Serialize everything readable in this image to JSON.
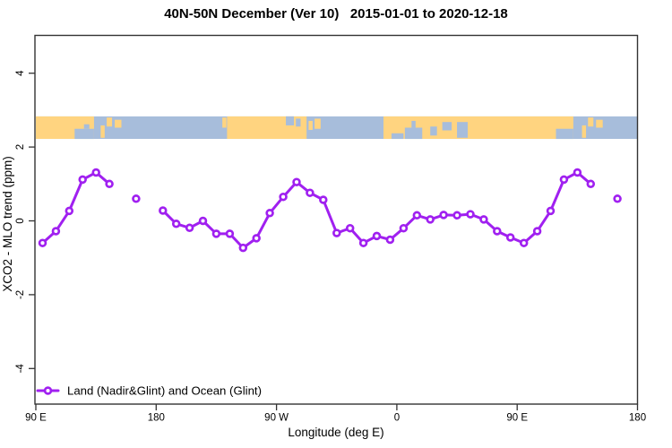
{
  "title": "40N-50N December (Ver 10)   2015-01-01 to 2020-12-18",
  "chart_data": {
    "type": "line",
    "xlabel": "Longitude (deg E)",
    "ylabel": "XCO2 - MLO trend (ppm)",
    "xlim": [
      90,
      540
    ],
    "ylim": [
      -5,
      5
    ],
    "grid": false,
    "x_ticks": [
      {
        "deg": 90,
        "label": "90 E"
      },
      {
        "deg": 180,
        "label": "180"
      },
      {
        "deg": 270,
        "label": "90 W"
      },
      {
        "deg": 360,
        "label": "0"
      },
      {
        "deg": 450,
        "label": "90 E"
      },
      {
        "deg": 540,
        "label": "180"
      }
    ],
    "y_ticks": [
      {
        "value": -4,
        "label": "-4"
      },
      {
        "value": -2,
        "label": "-2"
      },
      {
        "value": 0,
        "label": "0"
      },
      {
        "value": 2,
        "label": "2"
      },
      {
        "value": 4,
        "label": "4"
      }
    ],
    "legend": {
      "position": "bottom-left"
    },
    "gap_threshold_deg": 12,
    "series": [
      {
        "name": "Land (Nadir&Glint) and Ocean (Glint)",
        "color": "#A020F0",
        "marker": "open-circle",
        "points": [
          [
            95,
            -0.6
          ],
          [
            105,
            -0.28
          ],
          [
            115,
            0.27
          ],
          [
            125,
            1.12
          ],
          [
            135,
            1.31
          ],
          [
            145,
            1.0
          ],
          [
            165,
            0.6
          ],
          [
            185,
            0.28
          ],
          [
            195,
            -0.08
          ],
          [
            205,
            -0.19
          ],
          [
            215,
            0.0
          ],
          [
            225,
            -0.35
          ],
          [
            235,
            -0.35
          ],
          [
            245,
            -0.73
          ],
          [
            255,
            -0.47
          ],
          [
            265,
            0.21
          ],
          [
            275,
            0.65
          ],
          [
            285,
            1.05
          ],
          [
            295,
            0.76
          ],
          [
            305,
            0.57
          ],
          [
            315,
            -0.33
          ],
          [
            325,
            -0.2
          ],
          [
            335,
            -0.6
          ],
          [
            345,
            -0.41
          ],
          [
            355,
            -0.51
          ],
          [
            365,
            -0.2
          ],
          [
            375,
            0.15
          ],
          [
            385,
            0.04
          ],
          [
            395,
            0.16
          ],
          [
            405,
            0.15
          ],
          [
            415,
            0.18
          ],
          [
            425,
            0.04
          ],
          [
            435,
            -0.28
          ],
          [
            445,
            -0.45
          ],
          [
            455,
            -0.6
          ],
          [
            465,
            -0.28
          ],
          [
            475,
            0.27
          ],
          [
            485,
            1.12
          ],
          [
            495,
            1.31
          ],
          [
            505,
            1.0
          ],
          [
            525,
            0.6
          ]
        ]
      }
    ],
    "map_strip": {
      "description": "40N-50N latitude band world map strip (land/ocean)",
      "value_top": 2.83,
      "value_bottom": 2.22,
      "ocean_color": "#A7BDDB",
      "land_color": "#FFD480",
      "land_segments": [
        {
          "from": 90,
          "to": 133.5
        },
        {
          "from": 233,
          "to": 292.5
        },
        {
          "from": 350,
          "to": 492
        }
      ],
      "lakes": [
        {
          "from": 119,
          "to": 133.5,
          "top": 0.55,
          "bottom": 1.0
        },
        {
          "from": 126,
          "to": 130,
          "top": 0.35,
          "bottom": 0.55
        },
        {
          "from": 277,
          "to": 283,
          "top": 0.0,
          "bottom": 0.4
        },
        {
          "from": 284.5,
          "to": 288,
          "top": 0.1,
          "bottom": 0.45
        },
        {
          "from": 356,
          "to": 365,
          "top": 0.75,
          "bottom": 1.0
        },
        {
          "from": 366,
          "to": 379,
          "top": 0.5,
          "bottom": 1.0
        },
        {
          "from": 371,
          "to": 374,
          "top": 0.2,
          "bottom": 0.5
        },
        {
          "from": 385,
          "to": 390,
          "top": 0.45,
          "bottom": 0.85
        },
        {
          "from": 394,
          "to": 401,
          "top": 0.25,
          "bottom": 0.62
        },
        {
          "from": 405,
          "to": 413,
          "top": 0.25,
          "bottom": 0.95
        },
        {
          "from": 479,
          "to": 492,
          "top": 0.55,
          "bottom": 1.0
        }
      ],
      "islands": [
        {
          "from": 138.5,
          "to": 141.5,
          "top": 0.4,
          "bottom": 0.95
        },
        {
          "from": 143,
          "to": 147,
          "top": 0.05,
          "bottom": 0.45
        },
        {
          "from": 149,
          "to": 154,
          "top": 0.15,
          "bottom": 0.5
        },
        {
          "from": 229.5,
          "to": 232.5,
          "top": 0.05,
          "bottom": 0.5
        },
        {
          "from": 294,
          "to": 297,
          "top": 0.2,
          "bottom": 0.6
        },
        {
          "from": 298.5,
          "to": 303,
          "top": 0.1,
          "bottom": 0.55
        },
        {
          "from": 498.5,
          "to": 501.5,
          "top": 0.4,
          "bottom": 0.95
        },
        {
          "from": 503,
          "to": 507,
          "top": 0.05,
          "bottom": 0.45
        },
        {
          "from": 509,
          "to": 514,
          "top": 0.15,
          "bottom": 0.5
        }
      ]
    }
  }
}
